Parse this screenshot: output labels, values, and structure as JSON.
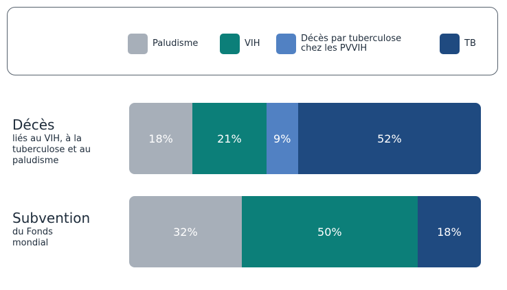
{
  "chart_data": {
    "type": "stacked-bar-horizontal",
    "categories": [
      "Décès",
      "Subvention"
    ],
    "category_subtitles": [
      "liés au VIH, à la tuberculose et au paludisme",
      "du Fonds mondial"
    ],
    "xlim": [
      0,
      100
    ],
    "series": [
      {
        "name": "Paludisme",
        "color": "#a7afb9",
        "values": [
          18,
          32
        ],
        "value_labels": [
          "18%",
          "32%"
        ]
      },
      {
        "name": "VIH",
        "color": "#0c7f79",
        "values": [
          21,
          50
        ],
        "value_labels": [
          "21%",
          "50%"
        ]
      },
      {
        "name": "Décès par tuberculose chez les PVVIH",
        "color": "#5181c3",
        "values": [
          9,
          null
        ],
        "value_labels": [
          "9%",
          null
        ]
      },
      {
        "name": "TB",
        "color": "#1f4a80",
        "values": [
          52,
          18
        ],
        "value_labels": [
          "52%",
          "18%"
        ]
      }
    ]
  }
}
